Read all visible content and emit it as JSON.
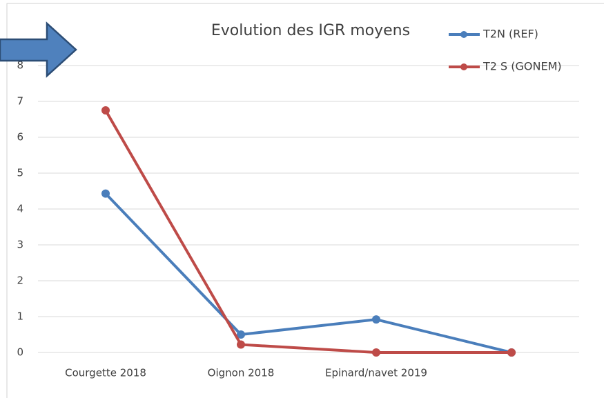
{
  "chart_data": {
    "type": "line",
    "title": "Evolution des IGR moyens",
    "categories": [
      "Courgette 2018",
      "Oignon 2018",
      "Epinard/navet 2019",
      null
    ],
    "series": [
      {
        "name": "T2N (REF)",
        "color": "#4a7ebb",
        "values": [
          4.43,
          0.5,
          0.92,
          0
        ]
      },
      {
        "name": "T2 S (GONEM)",
        "color": "#be4b48",
        "values": [
          6.75,
          0.22,
          0,
          0
        ]
      }
    ],
    "ylim": [
      0,
      8
    ],
    "yticks": [
      0,
      1,
      2,
      3,
      4,
      5,
      6,
      7,
      8
    ],
    "grid": true,
    "legend": "top-right"
  }
}
